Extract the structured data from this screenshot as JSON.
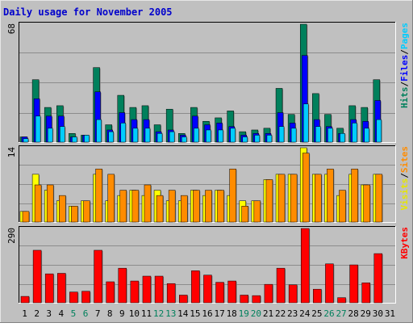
{
  "chart_data": {
    "type": "bar",
    "title": "Daily usage for November 2005",
    "categories": [
      "1",
      "2",
      "3",
      "4",
      "5",
      "6",
      "7",
      "8",
      "9",
      "10",
      "11",
      "12",
      "13",
      "14",
      "15",
      "16",
      "17",
      "18",
      "19",
      "20",
      "21",
      "22",
      "23",
      "24",
      "25",
      "26",
      "27",
      "28",
      "29",
      "30",
      "31"
    ],
    "weekend_days": [
      "5",
      "6",
      "12",
      "13",
      "19",
      "20",
      "26",
      "27"
    ],
    "panels": [
      {
        "id": "hits",
        "scale_label": "68",
        "ymax": 68,
        "right_labels": [
          {
            "text": "Hits",
            "color": "#00805c"
          },
          {
            "text": "/",
            "color": "#000000"
          },
          {
            "text": "Files",
            "color": "#0000ff"
          },
          {
            "text": "/",
            "color": "#000000"
          },
          {
            "text": "Pages",
            "color": "#00ccff"
          }
        ],
        "series": [
          {
            "name": "Hits",
            "color": "#00805c",
            "values": [
              3,
              36,
              20,
              21,
              5,
              4,
              43,
              10,
              27,
              20,
              21,
              10,
              19,
              5,
              20,
              12,
              14,
              18,
              6,
              7,
              8,
              31,
              16,
              68,
              28,
              16,
              8,
              21,
              20,
              36,
              0
            ]
          },
          {
            "name": "Files",
            "color": "#0000ff",
            "values": [
              3,
              25,
              15,
              15,
              3,
              4,
              29,
              7,
              17,
              13,
              13,
              6,
              7,
              4,
              15,
              10,
              11,
              9,
              4,
              5,
              5,
              17,
              11,
              50,
              13,
              9,
              5,
              13,
              12,
              24,
              0
            ]
          },
          {
            "name": "Pages",
            "color": "#00ccff",
            "values": [
              2,
              15,
              8,
              9,
              3,
              4,
              13,
              6,
              11,
              8,
              8,
              5,
              6,
              3,
              8,
              7,
              7,
              8,
              3,
              4,
              4,
              9,
              8,
              22,
              9,
              8,
              5,
              11,
              8,
              13,
              0
            ]
          }
        ]
      },
      {
        "id": "visits",
        "scale_label": "14",
        "ymax": 14,
        "right_labels": [
          {
            "text": "Visits",
            "color": "#e6e600"
          },
          {
            "text": "/",
            "color": "#000000"
          },
          {
            "text": "Sites",
            "color": "#ff8c00"
          }
        ],
        "series": [
          {
            "name": "Visits",
            "color": "#ffff00",
            "values": [
              2,
              9,
              6,
              4,
              3,
              4,
              9,
              4,
              5,
              6,
              5,
              6,
              4,
              4,
              6,
              5,
              6,
              5,
              4,
              4,
              8,
              9,
              9,
              14,
              9,
              9,
              5,
              9,
              7,
              9,
              0
            ]
          },
          {
            "name": "Sites",
            "color": "#ff8c00",
            "values": [
              2,
              7,
              7,
              5,
              3,
              4,
              10,
              9,
              6,
              6,
              7,
              5,
              6,
              5,
              6,
              6,
              6,
              10,
              3,
              4,
              8,
              9,
              9,
              13,
              9,
              10,
              6,
              10,
              7,
              9,
              0
            ]
          }
        ]
      },
      {
        "id": "kbytes",
        "scale_label": "290",
        "ymax": 290,
        "right_labels": [
          {
            "text": "KBytes",
            "color": "#ff0000"
          }
        ],
        "series": [
          {
            "name": "KBytes",
            "color": "#ff0000",
            "values": [
              25,
              205,
              113,
              115,
              42,
              45,
              205,
              82,
              135,
              85,
              104,
              104,
              75,
              30,
              125,
              108,
              80,
              85,
              30,
              28,
              72,
              135,
              70,
              290,
              53,
              152,
              20,
              148,
              78,
              192,
              0
            ]
          }
        ]
      }
    ]
  }
}
